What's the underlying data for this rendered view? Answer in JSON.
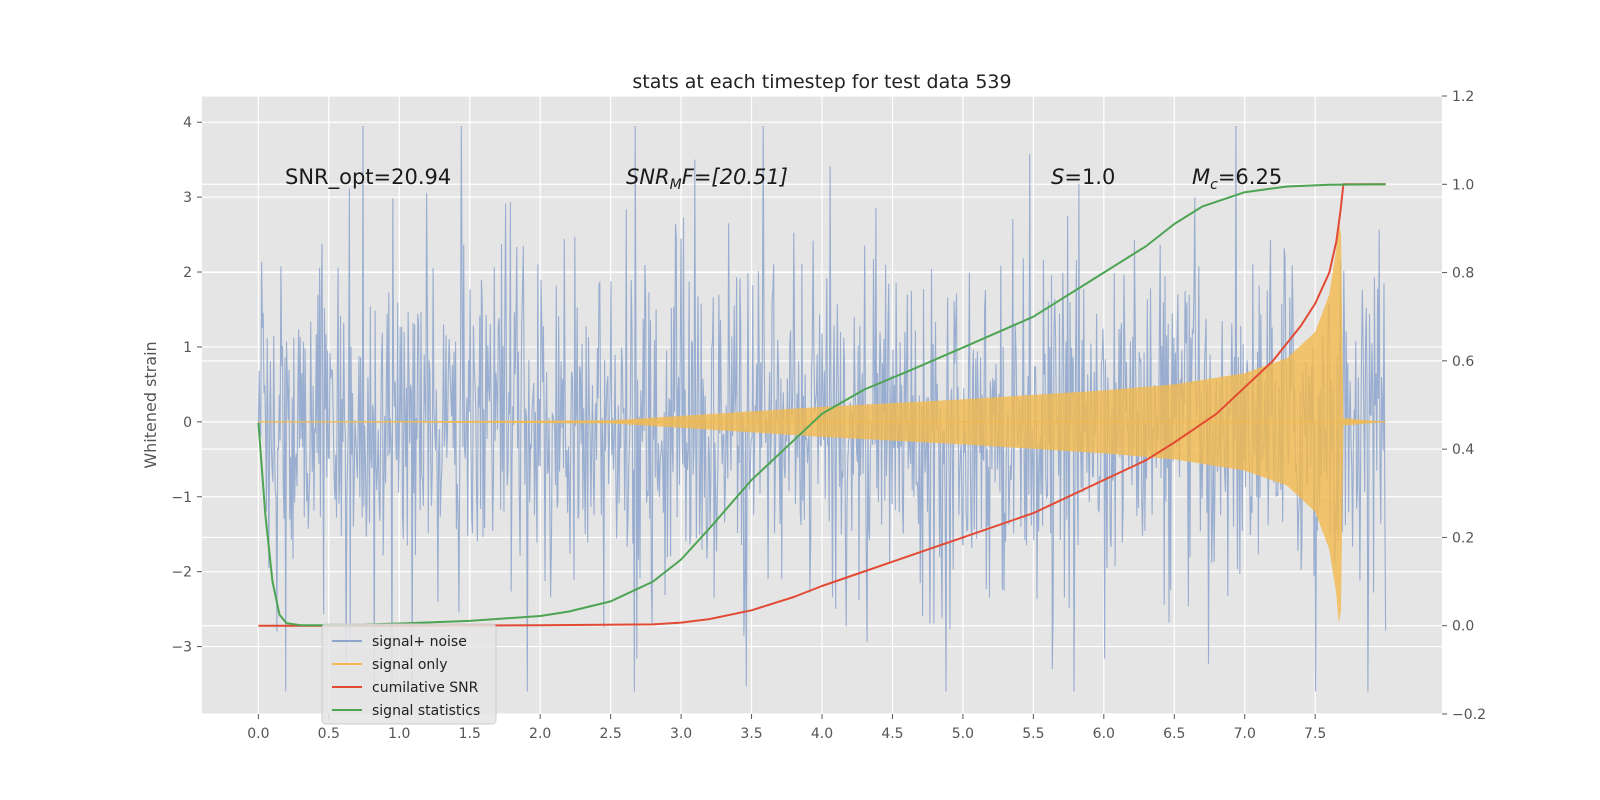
{
  "chart_data": {
    "type": "line",
    "title": "stats at each timestep for test data 539",
    "ylabel_left": "Whitened strain",
    "ylabel_right": "",
    "xlabel": "",
    "xlim": [
      -0.4,
      8.4
    ],
    "ylim_left": [
      -3.9,
      4.35
    ],
    "ylim_right": [
      -0.2,
      1.2
    ],
    "xticks": [
      "0.0",
      "0.5",
      "1.0",
      "1.5",
      "2.0",
      "2.5",
      "3.0",
      "3.5",
      "4.0",
      "4.5",
      "5.0",
      "5.5",
      "6.0",
      "6.5",
      "7.0",
      "7.5"
    ],
    "yticks_left": [
      "4",
      "3",
      "2",
      "1",
      "0",
      "−1",
      "−2",
      "−3"
    ],
    "yticks_right": [
      "1.2",
      "1.0",
      "0.8",
      "0.6",
      "0.4",
      "0.2",
      "0.0",
      "−0.2"
    ],
    "grid": true,
    "annotations": {
      "snr_opt": "SNR_opt=20.94",
      "snr_mf_main": "SNR",
      "snr_mf_sub": "M",
      "snr_mf_rest": "F=[20.51]",
      "s_var": "S",
      "s_rest": "=1.0",
      "mc_var": "M",
      "mc_sub": "c",
      "mc_rest": "=6.25"
    },
    "legend": {
      "position": "lower-left",
      "entries": [
        {
          "label": "signal+ noise",
          "color": "#8fa6cc"
        },
        {
          "label": "signal only",
          "color": "#f2b94c"
        },
        {
          "label": "cumilative SNR",
          "color": "#e24a33"
        },
        {
          "label": "signal statistics",
          "color": "#4da453"
        }
      ]
    },
    "series": [
      {
        "name": "signal+ noise",
        "axis": "left",
        "color": "#8fa6cc",
        "t_range": [
          0.0,
          8.0
        ],
        "amplitude_range": [
          -3.6,
          3.95
        ]
      },
      {
        "name": "signal only",
        "axis": "left",
        "color": "#f2b94c",
        "envelope_t": [
          0.0,
          2.5,
          3.0,
          3.5,
          4.0,
          4.5,
          5.0,
          5.5,
          6.0,
          6.5,
          7.0,
          7.3,
          7.5,
          7.6,
          7.65,
          7.68,
          7.7,
          8.0
        ],
        "envelope_amp": [
          0.0,
          0.02,
          0.08,
          0.14,
          0.2,
          0.25,
          0.3,
          0.36,
          0.42,
          0.5,
          0.65,
          0.85,
          1.2,
          1.7,
          2.3,
          3.0,
          0.05,
          0.0
        ]
      },
      {
        "name": "cumilative SNR",
        "axis": "right",
        "color": "#e24a33",
        "x": [
          0.0,
          1.0,
          2.0,
          2.8,
          3.0,
          3.2,
          3.5,
          3.8,
          4.0,
          4.5,
          5.0,
          5.5,
          6.0,
          6.3,
          6.5,
          6.8,
          7.0,
          7.2,
          7.4,
          7.5,
          7.6,
          7.65,
          7.68,
          7.7,
          8.0
        ],
        "y": [
          0.0,
          0.0,
          0.001,
          0.003,
          0.007,
          0.015,
          0.035,
          0.065,
          0.09,
          0.145,
          0.2,
          0.255,
          0.33,
          0.375,
          0.415,
          0.48,
          0.54,
          0.6,
          0.68,
          0.73,
          0.8,
          0.87,
          0.94,
          1.0,
          1.0
        ]
      },
      {
        "name": "signal statistics",
        "axis": "right",
        "color": "#4da453",
        "x": [
          0.0,
          0.05,
          0.1,
          0.15,
          0.2,
          0.3,
          0.5,
          1.0,
          1.5,
          2.0,
          2.2,
          2.5,
          2.8,
          3.0,
          3.2,
          3.5,
          3.8,
          4.0,
          4.3,
          4.6,
          5.0,
          5.5,
          6.0,
          6.3,
          6.5,
          6.7,
          7.0,
          7.3,
          7.6,
          8.0
        ],
        "y": [
          0.46,
          0.25,
          0.1,
          0.025,
          0.006,
          0.001,
          0.001,
          0.005,
          0.011,
          0.022,
          0.032,
          0.055,
          0.1,
          0.15,
          0.22,
          0.33,
          0.42,
          0.48,
          0.535,
          0.575,
          0.63,
          0.7,
          0.8,
          0.86,
          0.91,
          0.95,
          0.982,
          0.995,
          0.999,
          1.0
        ]
      }
    ]
  }
}
